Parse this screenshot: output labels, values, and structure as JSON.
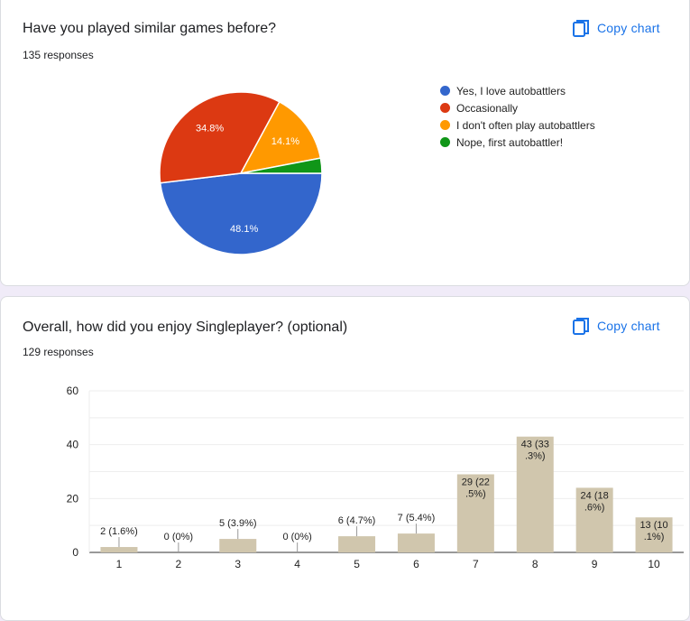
{
  "colors": {
    "accent": "#1a73e8",
    "bar": "#d0c6ad"
  },
  "copy_chart_label": "Copy chart",
  "copy_icon": "copy-icon",
  "question1": {
    "title": "Have you played similar games before?",
    "responses": "135 responses",
    "chart_data": {
      "type": "pie",
      "labels": [
        "Yes, I love autobattlers",
        "Occasionally",
        "I don't often play autobattlers",
        "Nope, first autobattler!"
      ],
      "values": [
        48.1,
        34.8,
        14.1,
        3.0
      ],
      "display_labels": [
        "48.1%",
        "34.8%",
        "14.1%",
        ""
      ],
      "colors": [
        "#3366cc",
        "#dc3912",
        "#ff9900",
        "#109618"
      ],
      "legend_position": "right"
    }
  },
  "question2": {
    "title": "Overall, how did you enjoy Singleplayer? (optional)",
    "responses": "129 responses",
    "chart_data": {
      "type": "bar",
      "categories": [
        "1",
        "2",
        "3",
        "4",
        "5",
        "6",
        "7",
        "8",
        "9",
        "10"
      ],
      "values": [
        2,
        0,
        5,
        0,
        6,
        7,
        29,
        43,
        24,
        13
      ],
      "data_labels": [
        "2 (1.6%)",
        "0 (0%)",
        "5 (3.9%)",
        "0 (0%)",
        "6 (4.7%)",
        "7 (5.4%)",
        "29 (22.5%)",
        "43 (33.3%)",
        "24 (18.6%)",
        "13 (10.1%)"
      ],
      "yticks": [
        "0",
        "20",
        "40",
        "60"
      ],
      "ylim": [
        0,
        60
      ],
      "grid": true
    }
  }
}
